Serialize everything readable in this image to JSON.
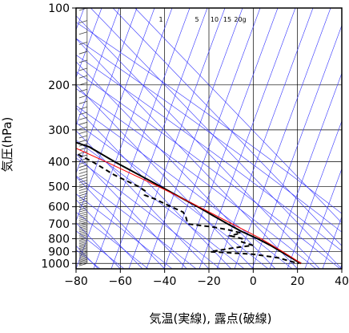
{
  "chart_data": {
    "type": "line",
    "title": "",
    "xlabel": "気温(実線), 露点(破線)",
    "ylabel": "気圧(hPa)",
    "xlim": [
      -80,
      40
    ],
    "ylim": [
      1050,
      100
    ],
    "y_scale": "log",
    "x_ticks": [
      -80,
      -60,
      -40,
      -20,
      0,
      20,
      40
    ],
    "x_tick_labels": [
      "−80",
      "−60",
      "−40",
      "−20",
      "0",
      "20",
      "40"
    ],
    "y_ticks": [
      100,
      200,
      300,
      400,
      500,
      600,
      700,
      800,
      900,
      1000
    ],
    "y_tick_labels": [
      "100",
      "200",
      "300",
      "400",
      "500",
      "600",
      "700",
      "800",
      "900",
      "1000"
    ],
    "mixing_ratio_labels": [
      "1",
      "5",
      "10",
      "15",
      "20g"
    ],
    "series": [
      {
        "style": "solid",
        "color": "#000000",
        "points": [
          {
            "p": 100,
            "t": -75
          },
          {
            "p": 105,
            "t": -73
          },
          {
            "p": 115,
            "t": -70
          },
          {
            "p": 120,
            "t": -68
          },
          {
            "p": 130,
            "t": -67
          },
          {
            "p": 140,
            "t": -66
          },
          {
            "p": 150,
            "t": -63
          },
          {
            "p": 170,
            "t": -58
          },
          {
            "p": 200,
            "t": -52
          },
          {
            "p": 250,
            "t": -43
          },
          {
            "p": 300,
            "t": -34
          },
          {
            "p": 320,
            "t": -30
          },
          {
            "p": 340,
            "t": -24
          },
          {
            "p": 350,
            "t": -21
          },
          {
            "p": 400,
            "t": -16
          },
          {
            "p": 500,
            "t": -6
          },
          {
            "p": 550,
            "t": -2
          },
          {
            "p": 600,
            "t": 2
          },
          {
            "p": 650,
            "t": 5
          },
          {
            "p": 700,
            "t": 8
          },
          {
            "p": 750,
            "t": 11
          },
          {
            "p": 800,
            "t": 15
          },
          {
            "p": 850,
            "t": 18
          },
          {
            "p": 900,
            "t": 20
          },
          {
            "p": 950,
            "t": 22
          },
          {
            "p": 980,
            "t": 23
          },
          {
            "p": 1000,
            "t": 24
          }
        ]
      },
      {
        "style": "dashed",
        "color": "#000000",
        "points": [
          {
            "p": 245,
            "t": -78
          },
          {
            "p": 244,
            "t": -70
          },
          {
            "p": 245,
            "t": -62
          },
          {
            "p": 250,
            "t": -54
          },
          {
            "p": 255,
            "t": -50
          },
          {
            "p": 260,
            "t": -48
          },
          {
            "p": 270,
            "t": -47
          },
          {
            "p": 280,
            "t": -55
          },
          {
            "p": 290,
            "t": -48
          },
          {
            "p": 295,
            "t": -44
          },
          {
            "p": 310,
            "t": -40
          },
          {
            "p": 330,
            "t": -42
          },
          {
            "p": 350,
            "t": -38
          },
          {
            "p": 370,
            "t": -30
          },
          {
            "p": 400,
            "t": -26
          },
          {
            "p": 450,
            "t": -22
          },
          {
            "p": 500,
            "t": -16
          },
          {
            "p": 520,
            "t": -15
          },
          {
            "p": 540,
            "t": -17
          },
          {
            "p": 560,
            "t": -14
          },
          {
            "p": 580,
            "t": -12
          },
          {
            "p": 600,
            "t": -10
          },
          {
            "p": 630,
            "t": -7
          },
          {
            "p": 660,
            "t": -8
          },
          {
            "p": 700,
            "t": -10
          },
          {
            "p": 720,
            "t": 0
          },
          {
            "p": 740,
            "t": 6
          },
          {
            "p": 760,
            "t": 10
          },
          {
            "p": 780,
            "t": 4
          },
          {
            "p": 800,
            "t": 8
          },
          {
            "p": 820,
            "t": 6
          },
          {
            "p": 850,
            "t": 10
          },
          {
            "p": 870,
            "t": 0
          },
          {
            "p": 900,
            "t": -12
          },
          {
            "p": 920,
            "t": 6
          },
          {
            "p": 950,
            "t": 16
          },
          {
            "p": 980,
            "t": 20
          },
          {
            "p": 1000,
            "t": 23
          }
        ]
      },
      {
        "style": "solid",
        "color": "#ff0000",
        "points": [
          {
            "p": 1000,
            "t": 24
          },
          {
            "p": 950,
            "t": 22.5
          },
          {
            "p": 900,
            "t": 20.8
          },
          {
            "p": 850,
            "t": 18.8
          },
          {
            "p": 800,
            "t": 16.6
          },
          {
            "p": 700,
            "t": 10
          },
          {
            "p": 600,
            "t": 2.5
          },
          {
            "p": 500,
            "t": -7
          },
          {
            "p": 400,
            "t": -20
          },
          {
            "p": 300,
            "t": -38
          },
          {
            "p": 250,
            "t": -49
          },
          {
            "p": 200,
            "t": -62
          },
          {
            "p": 150,
            "t": -80
          }
        ]
      }
    ],
    "wind_barb_profile": {
      "x_position_t": -75,
      "p_range": [
        1000,
        100
      ]
    },
    "grid": true
  }
}
